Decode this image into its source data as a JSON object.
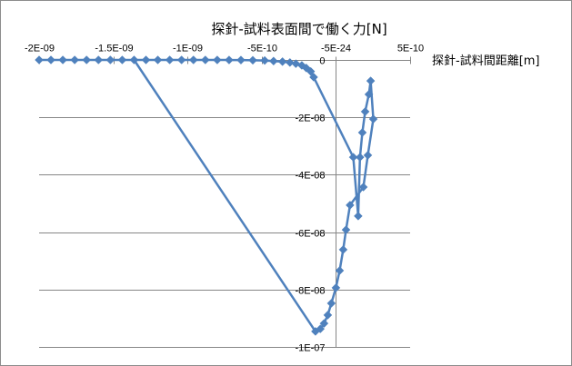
{
  "chart_data": {
    "type": "line",
    "title": "探針-試料表面間で働く力[N]",
    "xlabel": "探針-試料間距離[m]",
    "xlim": [
      -2e-09,
      5e-10
    ],
    "ylim": [
      -1e-07,
      0
    ],
    "x_axis_at_y": 0,
    "y_axis_at_x": 0,
    "x_ticks": [
      {
        "value": -2e-09,
        "label": "-2E-09"
      },
      {
        "value": -1.5e-09,
        "label": "-1.5E-09"
      },
      {
        "value": -1e-09,
        "label": "-1E-09"
      },
      {
        "value": -5e-10,
        "label": "-5E-10"
      },
      {
        "value": -5e-24,
        "label": "-5E-24"
      },
      {
        "value": 5e-10,
        "label": "5E-10"
      }
    ],
    "y_ticks": [
      {
        "value": 0,
        "label": "0"
      },
      {
        "value": -2e-08,
        "label": "-2E-08"
      },
      {
        "value": -4e-08,
        "label": "-4E-08"
      },
      {
        "value": -6e-08,
        "label": "-6E-08"
      },
      {
        "value": -8e-08,
        "label": "-8E-08"
      },
      {
        "value": -1e-07,
        "label": "-1E-07"
      }
    ],
    "grid": {
      "horizontal": true,
      "vertical": false
    },
    "legend": "none",
    "colors": {
      "series": "#4F81BD",
      "grid": "#868686",
      "axis": "#868686"
    },
    "series": [
      {
        "marker": "diamond",
        "x": [
          -2e-09,
          -1.92e-09,
          -1.84e-09,
          -1.76e-09,
          -1.68e-09,
          -1.6e-09,
          -1.52e-09,
          -1.44e-09,
          -1.36e-09,
          -1.28e-09,
          -1.2e-09,
          -1.12e-09,
          -1.04e-09,
          -9.6e-10,
          -8.8e-10,
          -8e-10,
          -7.2e-10,
          -6.4e-10,
          -5.6e-10,
          -4.8e-10,
          -4.2e-10,
          -3.6e-10,
          -3.1e-10,
          -2.7e-10,
          -2.3e-10,
          -2e-10,
          -1.7e-10,
          -1.5e-10,
          1.17e-10,
          1.5e-10,
          1.62e-10,
          1.78e-10,
          1.97e-10,
          2.22e-10,
          2.34e-10,
          2.52e-10,
          2.15e-10,
          1.85e-10,
          9.5e-11,
          6.8e-11,
          4.9e-11,
          2.5e-11,
          0,
          -3.1e-11,
          -5.5e-11,
          -8e-11,
          -1.05e-10,
          -1.38e-10,
          -1.36e-09
        ],
        "y": [
          0,
          0,
          0,
          0,
          0,
          0,
          0,
          0,
          0,
          0,
          0,
          0,
          0,
          0,
          0,
          -1e-11,
          -2e-11,
          -5e-11,
          -1e-10,
          -2e-10,
          -4e-10,
          -6e-10,
          -9e-10,
          -1.3e-09,
          -1.9e-09,
          -2.8e-09,
          -4e-09,
          -6e-09,
          -3.39e-08,
          -5.44e-08,
          -3.39e-08,
          -2.53e-08,
          -1.8e-08,
          -1.2e-08,
          -7.3e-09,
          -2.06e-08,
          -3.32e-08,
          -4.43e-08,
          -5.06e-08,
          -5.92e-08,
          -6.61e-08,
          -7.34e-08,
          -7.94e-08,
          -8.48e-08,
          -8.89e-08,
          -9.18e-08,
          -9.37e-08,
          -9.46e-08,
          0
        ]
      }
    ]
  }
}
